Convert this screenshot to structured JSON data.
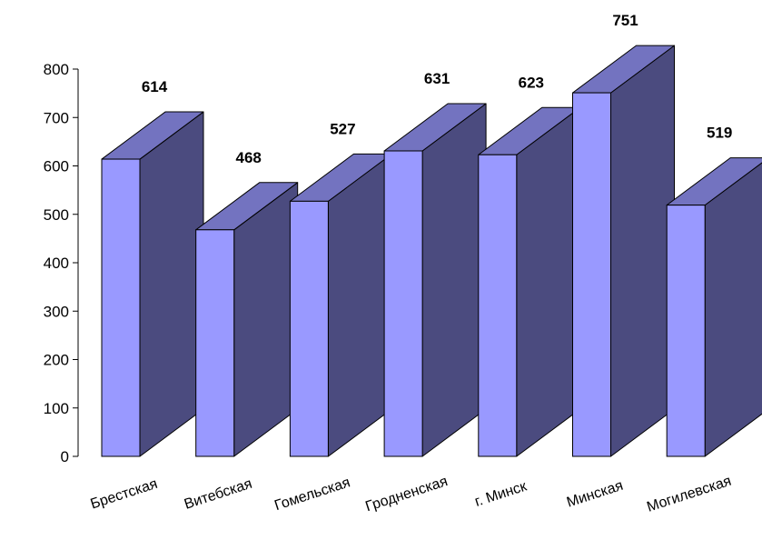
{
  "chart_data": {
    "type": "bar",
    "style": "3d",
    "categories": [
      "Брестская",
      "Витебская",
      "Гомельская",
      "Гродненская",
      "г. Минск",
      "Минская",
      "Могилевская"
    ],
    "values": [
      614,
      468,
      527,
      631,
      623,
      751,
      519
    ],
    "ylim": [
      0,
      800
    ],
    "yticks": [
      0,
      100,
      200,
      300,
      400,
      500,
      600,
      700,
      800
    ],
    "yticks_labels": [
      "0",
      "100",
      "200",
      "300",
      "400",
      "500",
      "600",
      "700",
      "800"
    ],
    "value_labels": [
      "614",
      "468",
      "527",
      "631",
      "623",
      "751",
      "519"
    ],
    "grid": false,
    "legend": "none",
    "colors": {
      "front": "#9999ff",
      "side": "#4b4b7f",
      "top": "#7373c0",
      "edge": "#000000"
    }
  }
}
